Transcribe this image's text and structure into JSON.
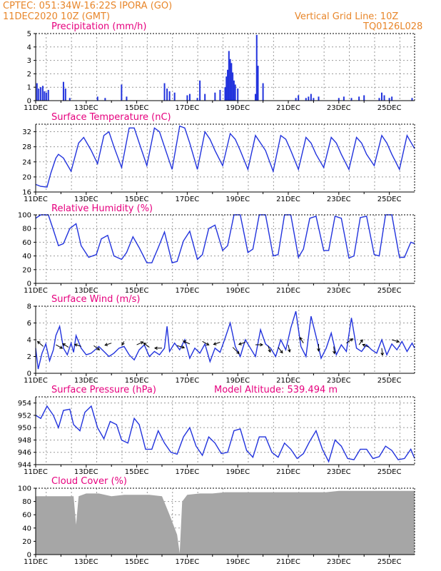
{
  "header": {
    "line1": "CPTEC:  051:34W-16:22S  IPORA (GO)",
    "line2": "11DEC2020 10Z (GMT)",
    "right1": "Vertical Grid Line: 10Z",
    "right2": "TQ0126L028"
  },
  "colors": {
    "header": "#e8862a",
    "title": "#e6007e",
    "series": "#2233dd",
    "cloud": "#a6a6a6"
  },
  "x_axis": {
    "range_days": [
      0,
      15
    ],
    "labels": [
      "11DEC",
      "13DEC",
      "15DEC",
      "17DEC",
      "19DEC",
      "21DEC",
      "23DEC",
      "25DEC"
    ],
    "label_days": [
      0,
      2,
      4,
      6,
      8,
      10,
      12,
      14
    ]
  },
  "panels": {
    "precip": {
      "title": "Precipitation (mm/h)",
      "yticks": [
        "0",
        "1",
        "2",
        "3",
        "4",
        "5"
      ]
    },
    "temp": {
      "title": "Surface Temperature (nC)",
      "yticks": [
        "16",
        "20",
        "24",
        "28",
        "32"
      ]
    },
    "rh": {
      "title": "Relative Humidity (%)",
      "yticks": [
        "0",
        "20",
        "40",
        "60",
        "80",
        "100"
      ]
    },
    "wind": {
      "title": "Surface Wind (m/s)",
      "yticks": [
        "0",
        "2",
        "4",
        "6",
        "8"
      ]
    },
    "pres": {
      "title": "Surface Pressure (hPa)",
      "extra": "Model Altitude: 539.494 m",
      "yticks": [
        "944",
        "946",
        "948",
        "950",
        "952",
        "954"
      ]
    },
    "cloud": {
      "title": "Cloud Cover (%)",
      "yticks": [
        "0",
        "20",
        "40",
        "60",
        "80",
        "100"
      ]
    }
  },
  "chart_data": [
    {
      "type": "bar",
      "title": "Precipitation (mm/h)",
      "ylim": [
        0,
        5
      ],
      "x_unit": "days since 11DEC2020 00Z",
      "x": [
        0.05,
        0.12,
        0.2,
        0.28,
        0.35,
        0.42,
        0.5,
        1.1,
        1.18,
        1.35,
        2.45,
        2.75,
        3.4,
        3.6,
        5.1,
        5.2,
        5.3,
        5.5,
        6.0,
        6.1,
        6.4,
        6.5,
        6.7,
        7.1,
        7.3,
        7.5,
        7.55,
        7.6,
        7.65,
        7.7,
        7.75,
        7.8,
        7.85,
        7.9,
        8.0,
        8.7,
        8.75,
        8.8,
        9.0,
        10.3,
        10.4,
        10.7,
        10.8,
        10.9,
        11.0,
        11.2,
        12.0,
        12.2,
        12.5,
        12.8,
        13.0,
        13.6,
        13.7,
        13.8,
        14.0,
        14.1,
        14.9
      ],
      "values": [
        1.3,
        0.9,
        1.0,
        1.1,
        0.7,
        0.6,
        0.8,
        1.4,
        0.9,
        0.2,
        0.3,
        0.2,
        1.2,
        0.3,
        1.3,
        0.9,
        0.7,
        0.6,
        0.4,
        0.5,
        0.2,
        1.5,
        0.5,
        0.6,
        0.8,
        1.0,
        1.8,
        2.3,
        3.7,
        3.1,
        2.8,
        2.1,
        1.5,
        1.2,
        0.9,
        0.5,
        4.9,
        2.6,
        1.3,
        0.2,
        0.4,
        0.2,
        0.3,
        0.5,
        0.2,
        0.3,
        0.2,
        0.3,
        0.2,
        0.3,
        0.4,
        0.2,
        0.6,
        0.4,
        0.2,
        0.3,
        0.2
      ]
    },
    {
      "type": "line",
      "title": "Surface Temperature (nC)",
      "ylim": [
        16,
        34
      ],
      "x_unit": "days since 11DEC2020 00Z",
      "x": [
        0,
        0.2,
        0.45,
        0.6,
        0.8,
        0.9,
        1.1,
        1.4,
        1.7,
        1.9,
        2.2,
        2.45,
        2.7,
        2.9,
        3.1,
        3.4,
        3.7,
        3.9,
        4.1,
        4.4,
        4.7,
        4.9,
        5.1,
        5.4,
        5.7,
        5.9,
        6.1,
        6.4,
        6.7,
        6.9,
        7.1,
        7.4,
        7.7,
        7.9,
        8.1,
        8.4,
        8.7,
        8.9,
        9.1,
        9.4,
        9.7,
        9.9,
        10.1,
        10.4,
        10.7,
        10.9,
        11.1,
        11.4,
        11.7,
        11.9,
        12.1,
        12.4,
        12.7,
        12.9,
        13.1,
        13.4,
        13.7,
        13.9,
        14.1,
        14.4,
        14.7,
        15.0
      ],
      "values": [
        18,
        17.5,
        17.3,
        21,
        25,
        26,
        25,
        21.5,
        29,
        30.5,
        27,
        23.5,
        31,
        32,
        28,
        22.5,
        33,
        33,
        29,
        23,
        33,
        32,
        28,
        22,
        33.5,
        33,
        29,
        22,
        32,
        30,
        27,
        23,
        31.5,
        30,
        27,
        22,
        31,
        29,
        27,
        21.5,
        31,
        30,
        27,
        22,
        30.5,
        29,
        26,
        22.5,
        30.5,
        29,
        26,
        22,
        30.5,
        29,
        26,
        23,
        31,
        29,
        26,
        22,
        31,
        27.5
      ]
    },
    {
      "type": "line",
      "title": "Relative Humidity (%)",
      "ylim": [
        0,
        100
      ],
      "x_unit": "days since 11DEC2020 00Z",
      "x": [
        0,
        0.2,
        0.5,
        0.7,
        0.9,
        1.1,
        1.35,
        1.6,
        1.8,
        2.1,
        2.4,
        2.6,
        2.85,
        3.1,
        3.4,
        3.6,
        3.85,
        4.1,
        4.4,
        4.6,
        4.85,
        5.1,
        5.4,
        5.6,
        5.85,
        6.1,
        6.4,
        6.6,
        6.85,
        7.1,
        7.4,
        7.6,
        7.85,
        8.1,
        8.4,
        8.6,
        8.85,
        9.1,
        9.4,
        9.6,
        9.85,
        10.1,
        10.4,
        10.6,
        10.85,
        11.1,
        11.4,
        11.6,
        11.85,
        12.1,
        12.4,
        12.6,
        12.85,
        13.1,
        13.4,
        13.6,
        13.85,
        14.1,
        14.4,
        14.6,
        14.85,
        15.0
      ],
      "values": [
        95,
        100,
        100,
        78,
        55,
        58,
        80,
        87,
        55,
        38,
        42,
        65,
        70,
        40,
        35,
        45,
        68,
        52,
        30,
        30,
        52,
        75,
        30,
        32,
        62,
        76,
        35,
        42,
        80,
        85,
        48,
        55,
        100,
        100,
        45,
        50,
        100,
        100,
        40,
        42,
        100,
        100,
        38,
        50,
        95,
        98,
        48,
        48,
        98,
        95,
        37,
        40,
        96,
        98,
        42,
        40,
        100,
        100,
        38,
        38,
        60,
        58
      ]
    },
    {
      "type": "line",
      "title": "Surface Wind (m/s)",
      "ylim": [
        0,
        8
      ],
      "x_unit": "days since 11DEC2020 00Z",
      "x": [
        0,
        0.1,
        0.25,
        0.4,
        0.55,
        0.7,
        0.8,
        0.95,
        1.1,
        1.25,
        1.4,
        1.5,
        1.6,
        1.8,
        2.0,
        2.2,
        2.35,
        2.5,
        2.7,
        2.9,
        3.1,
        3.3,
        3.5,
        3.7,
        3.9,
        4.1,
        4.3,
        4.5,
        4.7,
        4.9,
        5.1,
        5.2,
        5.3,
        5.5,
        5.7,
        5.9,
        6.1,
        6.3,
        6.5,
        6.7,
        6.9,
        7.1,
        7.3,
        7.5,
        7.7,
        7.9,
        8.1,
        8.3,
        8.5,
        8.7,
        8.9,
        9.1,
        9.3,
        9.5,
        9.7,
        9.9,
        10.1,
        10.3,
        10.5,
        10.7,
        10.9,
        11.1,
        11.3,
        11.5,
        11.7,
        11.9,
        12.1,
        12.3,
        12.5,
        12.7,
        12.9,
        13.1,
        13.3,
        13.5,
        13.7,
        13.9,
        14.1,
        14.3,
        14.5,
        14.7,
        14.9,
        15.0
      ],
      "values": [
        3,
        0.5,
        2.4,
        3.5,
        1.5,
        2.8,
        4.5,
        5.6,
        3.0,
        2.2,
        3.6,
        2.5,
        4.5,
        3.0,
        2.2,
        2.4,
        2.8,
        3.2,
        2.6,
        2.0,
        2.4,
        3.0,
        3.2,
        2.2,
        1.6,
        2.8,
        3.4,
        2.0,
        2.6,
        2.2,
        3.0,
        5.6,
        2.6,
        3.6,
        2.8,
        4.0,
        1.8,
        3.0,
        2.4,
        3.5,
        1.4,
        3.0,
        2.5,
        4.2,
        6.0,
        3.2,
        2.0,
        4.0,
        3.0,
        2.0,
        5.2,
        3.5,
        3.0,
        2.0,
        4.0,
        2.8,
        5.4,
        7.4,
        3.2,
        2.0,
        6.8,
        4.4,
        1.8,
        3.0,
        4.8,
        2.2,
        3.4,
        2.6,
        6.6,
        3.0,
        2.6,
        3.4,
        2.8,
        2.4,
        4.0,
        2.2,
        3.5,
        2.8,
        3.8,
        2.6,
        3.6,
        3.0
      ]
    },
    {
      "type": "line",
      "title": "Surface Pressure (hPa)",
      "ylim": [
        944,
        955
      ],
      "x_unit": "days since 11DEC2020 00Z",
      "x": [
        0,
        0.2,
        0.45,
        0.7,
        0.9,
        1.1,
        1.35,
        1.5,
        1.75,
        1.95,
        2.2,
        2.45,
        2.7,
        2.95,
        3.2,
        3.4,
        3.65,
        3.9,
        4.1,
        4.35,
        4.6,
        4.85,
        5.1,
        5.35,
        5.6,
        5.85,
        6.1,
        6.35,
        6.6,
        6.85,
        7.1,
        7.35,
        7.6,
        7.85,
        8.1,
        8.35,
        8.6,
        8.85,
        9.1,
        9.35,
        9.6,
        9.85,
        10.1,
        10.35,
        10.6,
        10.85,
        11.1,
        11.35,
        11.6,
        11.85,
        12.1,
        12.35,
        12.6,
        12.85,
        13.1,
        13.35,
        13.6,
        13.85,
        14.1,
        14.35,
        14.6,
        14.85,
        15.0
      ],
      "values": [
        952,
        951.5,
        953.5,
        952,
        950,
        952.8,
        953,
        950.5,
        949.5,
        952.5,
        953.5,
        950,
        948.2,
        951,
        950.5,
        948,
        947.5,
        951.5,
        950.5,
        946.5,
        946.5,
        949.5,
        947.5,
        946,
        945.7,
        948.5,
        950,
        947,
        945.5,
        948.5,
        947.5,
        945.8,
        946,
        949.5,
        949.8,
        946.3,
        945.2,
        948.5,
        948.5,
        946,
        945.2,
        947.5,
        946.5,
        945,
        945.8,
        947.8,
        949.5,
        946.5,
        944.5,
        948,
        947,
        945,
        944.8,
        946.5,
        946.5,
        945,
        945.3,
        947,
        946.3,
        944.8,
        945,
        946.5,
        945
      ]
    },
    {
      "type": "area",
      "title": "Cloud Cover (%)",
      "ylim": [
        0,
        100
      ],
      "x_unit": "days since 11DEC2020 00Z",
      "x": [
        0,
        1,
        1.5,
        1.6,
        1.7,
        2,
        2.5,
        3,
        3.5,
        4,
        4.5,
        5,
        5.3,
        5.6,
        5.7,
        5.8,
        6,
        6.5,
        7,
        7.5,
        8,
        8.5,
        9,
        9.5,
        10,
        10.5,
        11,
        11.5,
        12,
        12.5,
        13,
        13.5,
        14,
        14.5,
        15
      ],
      "values": [
        88,
        88,
        88,
        45,
        88,
        92,
        92,
        88,
        90,
        90,
        90,
        88,
        60,
        30,
        2,
        80,
        90,
        92,
        92,
        94,
        94,
        94,
        94,
        94,
        94,
        94,
        94,
        94,
        96,
        96,
        96,
        96,
        96,
        96,
        96
      ]
    }
  ]
}
